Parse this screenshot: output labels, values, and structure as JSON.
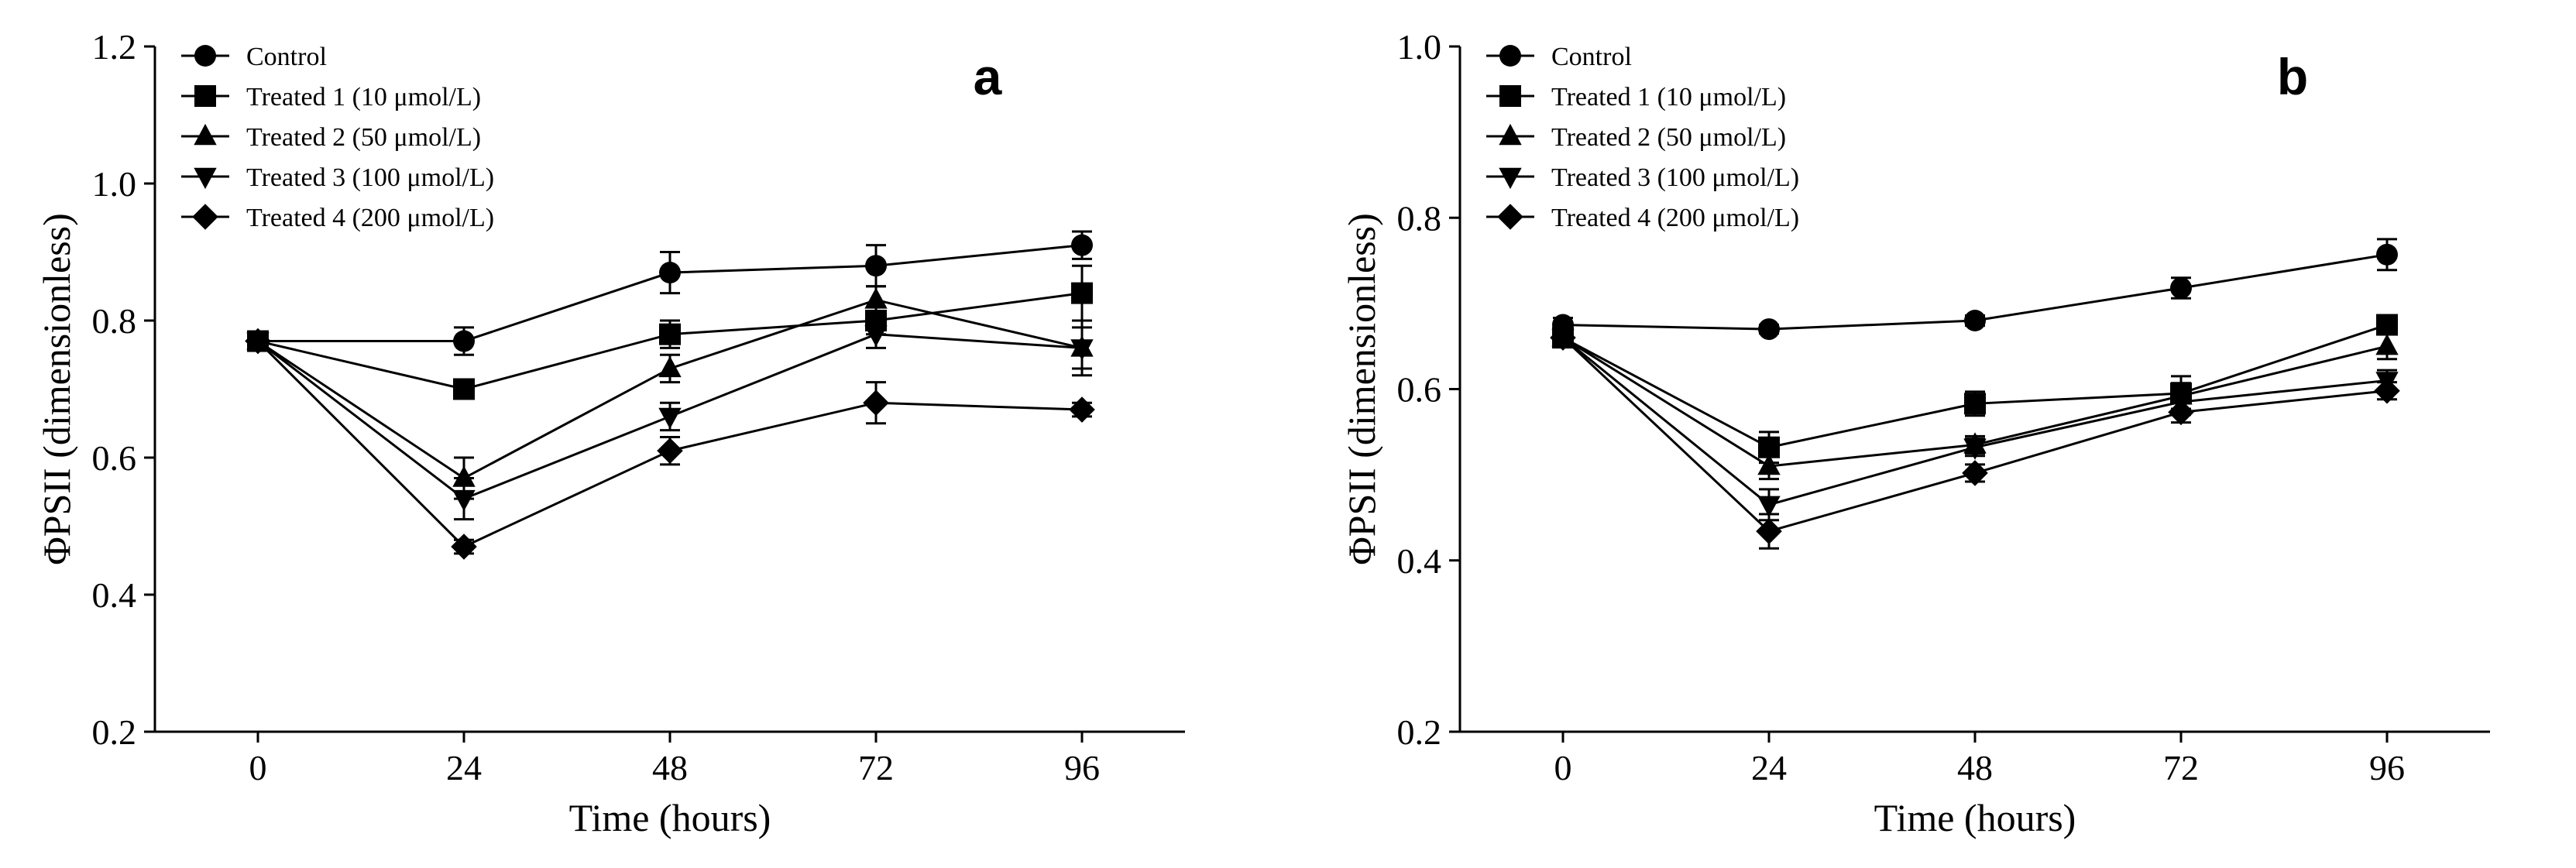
{
  "chart_data": [
    {
      "type": "line",
      "panel_label": "a",
      "xlabel": "Time (hours)",
      "ylabel": "ΦPSII (dimensionless)",
      "ylim": [
        0.2,
        1.2
      ],
      "yticks": [
        "0.2",
        "0.4",
        "0.6",
        "0.8",
        "1.0",
        "1.2"
      ],
      "xlim": [
        -12,
        108
      ],
      "x": [
        0,
        24,
        48,
        72,
        96
      ],
      "xticks": [
        "0",
        "24",
        "48",
        "72",
        "96"
      ],
      "legend_position": "top-left",
      "series": [
        {
          "name": "Control",
          "marker": "circle",
          "values": [
            0.77,
            0.77,
            0.87,
            0.88,
            0.91
          ],
          "errors": [
            0.01,
            0.02,
            0.03,
            0.03,
            0.02
          ]
        },
        {
          "name": "Treated 1 (10 μmol/L)",
          "marker": "square",
          "values": [
            0.77,
            0.7,
            0.78,
            0.8,
            0.84
          ],
          "errors": [
            0.01,
            0.01,
            0.02,
            0.02,
            0.04
          ]
        },
        {
          "name": "Treated 2 (50 μmol/L)",
          "marker": "triangle-up",
          "values": [
            0.77,
            0.57,
            0.73,
            0.83,
            0.76
          ],
          "errors": [
            0.01,
            0.03,
            0.02,
            0.02,
            0.04
          ]
        },
        {
          "name": "Treated 3 (100 μmol/L)",
          "marker": "triangle-down",
          "values": [
            0.77,
            0.54,
            0.66,
            0.78,
            0.76
          ],
          "errors": [
            0.01,
            0.03,
            0.02,
            0.02,
            0.03
          ]
        },
        {
          "name": "Treated 4 (200 μmol/L)",
          "marker": "diamond",
          "values": [
            0.77,
            0.47,
            0.61,
            0.68,
            0.67
          ],
          "errors": [
            0.01,
            0.01,
            0.02,
            0.03,
            0.01
          ]
        }
      ]
    },
    {
      "type": "line",
      "panel_label": "b",
      "xlabel": "Time (hours)",
      "ylabel": "ΦPSII (dimensionless)",
      "ylim": [
        0.2,
        1.0
      ],
      "yticks": [
        "0.2",
        "0.4",
        "0.6",
        "0.8",
        "1.0"
      ],
      "xlim": [
        -12,
        108
      ],
      "x": [
        0,
        24,
        48,
        72,
        96
      ],
      "xticks": [
        "0",
        "24",
        "48",
        "72",
        "96"
      ],
      "legend_position": "top-left",
      "series": [
        {
          "name": "Control",
          "marker": "circle",
          "values": [
            0.675,
            0.67,
            0.68,
            0.718,
            0.757
          ],
          "errors": [
            0.008,
            0.005,
            0.006,
            0.012,
            0.018
          ]
        },
        {
          "name": "Treated 1 (10 μmol/L)",
          "marker": "square",
          "values": [
            0.66,
            0.532,
            0.583,
            0.595,
            0.675
          ],
          "errors": [
            0.01,
            0.018,
            0.014,
            0.02,
            0.01
          ]
        },
        {
          "name": "Treated 2 (50 μmol/L)",
          "marker": "triangle-up",
          "values": [
            0.66,
            0.51,
            0.535,
            0.592,
            0.65
          ],
          "errors": [
            0.01,
            0.015,
            0.01,
            0.015,
            0.015
          ]
        },
        {
          "name": "Treated 3 (100 μmol/L)",
          "marker": "triangle-down",
          "values": [
            0.66,
            0.465,
            0.532,
            0.585,
            0.61
          ],
          "errors": [
            0.01,
            0.018,
            0.01,
            0.015,
            0.012
          ]
        },
        {
          "name": "Treated 4 (200 μmol/L)",
          "marker": "diamond",
          "values": [
            0.66,
            0.434,
            0.502,
            0.573,
            0.598
          ],
          "errors": [
            0.01,
            0.02,
            0.01,
            0.012,
            0.01
          ]
        }
      ]
    }
  ]
}
